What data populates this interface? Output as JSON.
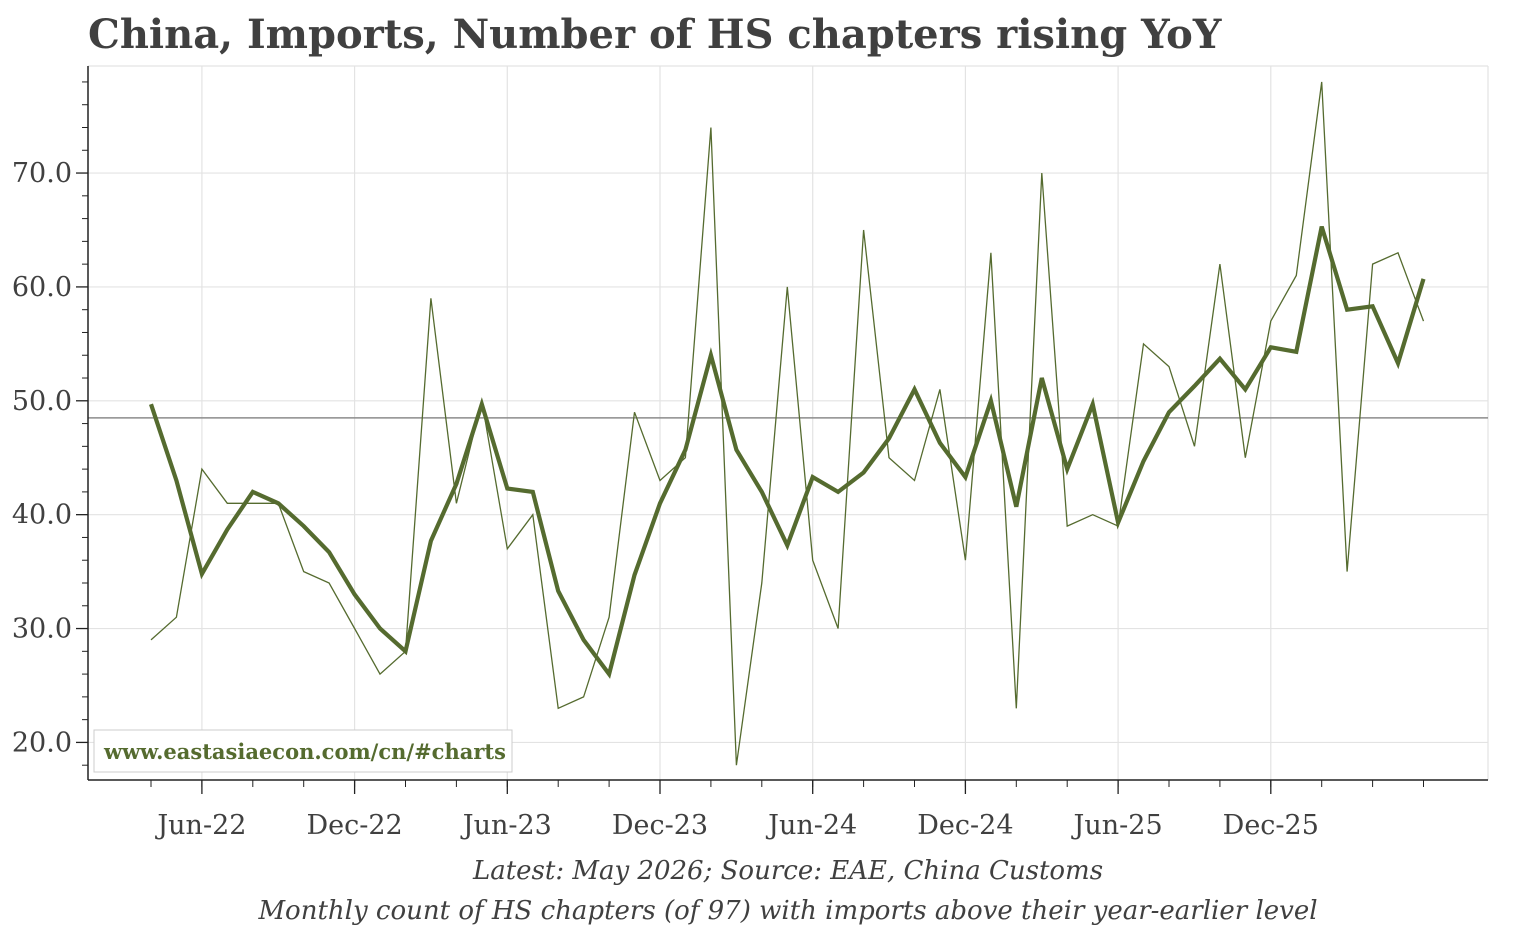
{
  "chart_data": {
    "type": "line",
    "title": "China, Imports, Number of HS chapters rising YoY",
    "xlabel": "",
    "ylabel": "",
    "x_tick_labels": [
      "Jun-22",
      "Dec-22",
      "Jun-23",
      "Dec-23",
      "Jun-24",
      "Dec-24",
      "Jun-25",
      "Dec-25"
    ],
    "y_tick_labels": [
      "20.0",
      "30.0",
      "40.0",
      "50.0",
      "60.0",
      "70.0"
    ],
    "ylim": [
      16.7,
      79.4
    ],
    "x_start": "2022-04",
    "x_end": "2026-05",
    "reference_line": 48.5,
    "grid": true,
    "series": [
      {
        "name": "",
        "style": "thin",
        "color": "#556B2F",
        "values": [
          29,
          31,
          44,
          41,
          41,
          41,
          35,
          34,
          30,
          26,
          28,
          59,
          41,
          50,
          37,
          40,
          23,
          24,
          31,
          49,
          43,
          45,
          74,
          18,
          34,
          60,
          36,
          30,
          65,
          45,
          43,
          51,
          36,
          63,
          23,
          70,
          39,
          40,
          39,
          55,
          53,
          46,
          62,
          45,
          57,
          61,
          78,
          35,
          62,
          63,
          57
        ]
      },
      {
        "name": "",
        "style": "thick",
        "color": "#556B2F",
        "values": [
          49.7,
          43.0,
          34.8,
          38.7,
          42.0,
          41.0,
          39.0,
          36.7,
          33.0,
          30.0,
          28.0,
          37.7,
          42.7,
          49.7,
          42.3,
          42.0,
          33.3,
          29.0,
          26.0,
          34.7,
          41.0,
          45.7,
          54.0,
          45.7,
          42.0,
          37.3,
          43.3,
          42.0,
          43.7,
          46.7,
          51.0,
          46.3,
          43.3,
          50.0,
          40.7,
          52.0,
          44.0,
          49.7,
          39.3,
          44.7,
          49.0,
          51.3,
          53.7,
          51.0,
          54.7,
          54.3,
          65.3,
          58.0,
          58.3,
          53.3,
          60.7
        ]
      }
    ],
    "footnote_1": "Latest: May 2026; Source: EAE, China Customs",
    "footnote_2": "Monthly count of HS chapters (of 97) with imports above their year-earlier level",
    "watermark": "www.eastasiaecon.com/cn/#charts"
  }
}
